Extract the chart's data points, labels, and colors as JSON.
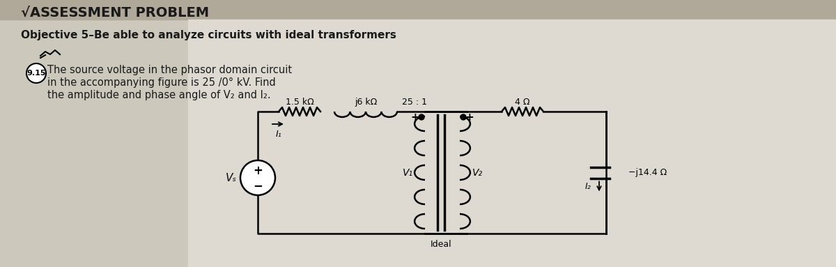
{
  "title_check": "√ASSESSMENT PROBLEM",
  "objective_line": "Objective 5–Be able to analyze circuits with ideal transformers",
  "problem_number": "9.15",
  "problem_text_line1": "The source voltage in the phasor domain circuit",
  "problem_text_line2": "in the accompanying figure is 25 /0° kV. Find",
  "problem_text_line3": "the amplitude and phase angle of V₂ and I₂.",
  "bg_color": "#d8d0c0",
  "text_area_bg": "#e8e4dc",
  "paper_bg": "#f0ece4",
  "circuit_bg": "#f5f2ee",
  "header_bg": "#b8b0a0",
  "resistor1_label": "1.5 kΩ",
  "inductor1_label": "j6 kΩ",
  "transformer_ratio": "25 : 1",
  "resistor2_label": "4 Ω",
  "capacitor_label": "−j14.4 Ω",
  "v1_label": "V₁",
  "v2_label": "V₂",
  "vs_label": "Vₛ",
  "i1_label": "I₁",
  "i2_label": "I₂",
  "ideal_label": "Ideal"
}
